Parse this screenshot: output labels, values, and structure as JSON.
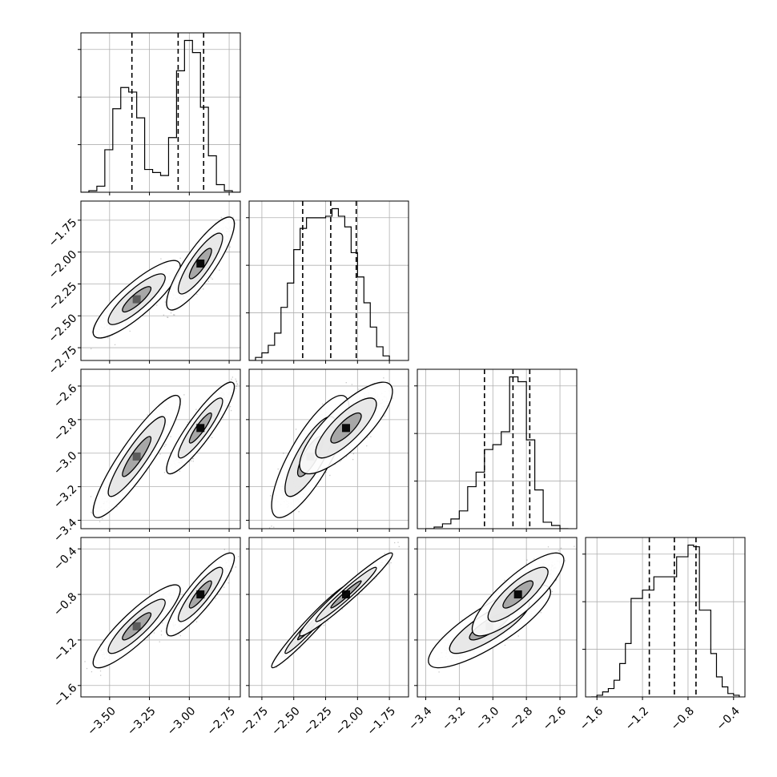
{
  "colors": {
    "points": "#000000",
    "grid": "#b0b0b0",
    "fill_outer": "#ffffff",
    "fill_inner": "#a0a0a0",
    "peak": "#000000"
  },
  "chart_data": {
    "type": "corner",
    "title": "",
    "n_parameters": 4,
    "grid": true,
    "axis_labels": [
      "",
      "",
      "",
      ""
    ],
    "parameters": [
      {
        "range": [
          -3.68,
          -2.68
        ],
        "ticks": [
          -3.5,
          -3.25,
          -3.0,
          -2.75
        ],
        "tick_labels": [
          "−3.50",
          "−3.25",
          "−3.00",
          "−2.75"
        ],
        "quantiles": [
          -3.36,
          -3.07,
          -2.91
        ],
        "hist": {
          "edges": [
            -3.68,
            -3.63,
            -3.58,
            -3.53,
            -3.48,
            -3.43,
            -3.38,
            -3.33,
            -3.28,
            -3.23,
            -3.18,
            -3.13,
            -3.08,
            -3.03,
            -2.98,
            -2.93,
            -2.88,
            -2.83,
            -2.78,
            -2.73,
            -2.68
          ],
          "counts": [
            0.0,
            0.01,
            0.04,
            0.28,
            0.55,
            0.69,
            0.66,
            0.49,
            0.15,
            0.13,
            0.11,
            0.36,
            0.8,
            1.0,
            0.92,
            0.56,
            0.24,
            0.05,
            0.01,
            0.0
          ]
        }
      },
      {
        "range": [
          -2.85,
          -1.6
        ],
        "ticks": [
          -2.75,
          -2.5,
          -2.25,
          -2.0,
          -1.75
        ],
        "tick_labels": [
          "−2.75",
          "−2.50",
          "−2.25",
          "−2.00",
          "−1.75"
        ],
        "quantiles": [
          -2.43,
          -2.21,
          -2.01
        ],
        "hist": {
          "edges": [
            -2.85,
            -2.8,
            -2.75,
            -2.7,
            -2.65,
            -2.6,
            -2.55,
            -2.5,
            -2.45,
            -2.4,
            -2.35,
            -2.3,
            -2.25,
            -2.2,
            -2.15,
            -2.1,
            -2.05,
            -2.0,
            -1.95,
            -1.9,
            -1.85,
            -1.8,
            -1.75
          ],
          "counts": [
            0.0,
            0.02,
            0.05,
            0.1,
            0.18,
            0.35,
            0.51,
            0.73,
            0.87,
            0.94,
            0.94,
            0.94,
            0.95,
            1.0,
            0.95,
            0.88,
            0.71,
            0.55,
            0.38,
            0.22,
            0.09,
            0.03
          ]
        }
      },
      {
        "range": [
          -3.45,
          -2.5
        ],
        "ticks": [
          -3.4,
          -3.2,
          -3.0,
          -2.8,
          -2.6
        ],
        "tick_labels": [
          "−3.4",
          "−3.2",
          "−3.0",
          "−2.8",
          "−2.6"
        ],
        "quantiles": [
          -3.05,
          -2.88,
          -2.78
        ],
        "hist": {
          "edges": [
            -3.4,
            -3.35,
            -3.3,
            -3.25,
            -3.2,
            -3.15,
            -3.1,
            -3.05,
            -3.0,
            -2.95,
            -2.9,
            -2.85,
            -2.8,
            -2.75,
            -2.7,
            -2.65,
            -2.6,
            -2.55
          ],
          "counts": [
            0.0,
            0.01,
            0.03,
            0.06,
            0.11,
            0.26,
            0.35,
            0.49,
            0.52,
            0.6,
            0.94,
            0.91,
            0.55,
            0.24,
            0.04,
            0.02,
            0.0
          ]
        }
      },
      {
        "range": [
          -1.7,
          -0.3
        ],
        "ticks": [
          -1.6,
          -1.2,
          -0.8,
          -0.4
        ],
        "tick_labels": [
          "−1.6",
          "−1.2",
          "−0.8",
          "−0.4"
        ],
        "quantiles": [
          -1.14,
          -0.92,
          -0.73
        ],
        "hist": {
          "edges": [
            -1.65,
            -1.6,
            -1.55,
            -1.5,
            -1.45,
            -1.4,
            -1.35,
            -1.3,
            -1.25,
            -1.2,
            -1.15,
            -1.1,
            -1.05,
            -1.0,
            -0.95,
            -0.9,
            -0.85,
            -0.8,
            -0.75,
            -0.7,
            -0.65,
            -0.6,
            -0.55,
            -0.5,
            -0.45,
            -0.4,
            -0.35
          ],
          "counts": [
            0.0,
            0.01,
            0.03,
            0.05,
            0.1,
            0.2,
            0.32,
            0.59,
            0.59,
            0.64,
            0.64,
            0.72,
            0.72,
            0.72,
            0.72,
            0.84,
            0.84,
            0.91,
            0.9,
            0.52,
            0.52,
            0.26,
            0.12,
            0.06,
            0.02,
            0.01
          ]
        }
      }
    ],
    "modes": [
      {
        "weight": 0.42,
        "mean": [
          -3.33,
          -2.37,
          -3.02,
          -1.08
        ],
        "sd": [
          0.09,
          0.1,
          0.12,
          0.12
        ]
      },
      {
        "weight": 0.58,
        "mean": [
          -2.93,
          -2.09,
          -2.85,
          -0.8
        ],
        "sd": [
          0.07,
          0.12,
          0.09,
          0.12
        ]
      }
    ],
    "correlation": [
      [
        1.0,
        0.85,
        0.9,
        0.88
      ],
      [
        0.85,
        1.0,
        0.8,
        0.97
      ],
      [
        0.9,
        0.8,
        1.0,
        0.83
      ],
      [
        0.88,
        0.97,
        0.83,
        1.0
      ]
    ],
    "contour_levels": [
      0.39,
      0.86,
      0.99
    ],
    "scatter_points_per_panel": 3500
  }
}
